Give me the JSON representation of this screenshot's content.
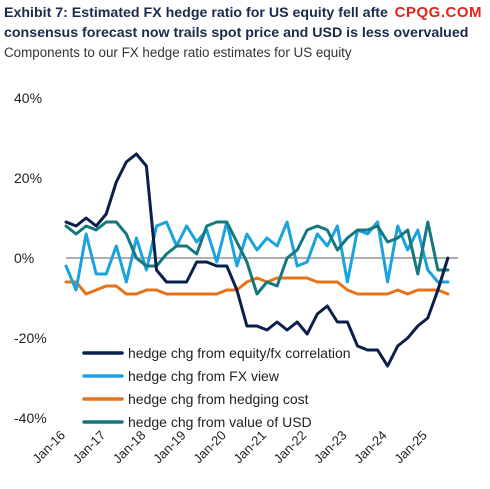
{
  "header": {
    "title_line1": "Exhibit 7: Estimated FX hedge ratio for US equity fell afte",
    "title_line2": "consensus forecast now trails spot price and USD is less overvalued",
    "subtitle": "Components to our FX hedge ratio estimates for US equity",
    "watermark": "CPQG.COM"
  },
  "chart_data": {
    "type": "line",
    "title": "",
    "xlabel": "",
    "ylabel": "",
    "ylim": [
      -40,
      40
    ],
    "yticks": [
      40,
      20,
      0,
      -20,
      -40
    ],
    "ytick_labels": [
      "40%",
      "20%",
      "0%",
      "-20%",
      "-40%"
    ],
    "xlim": [
      2016.0,
      2025.75
    ],
    "xticks": [
      2016,
      2017,
      2018,
      2019,
      2020,
      2021,
      2022,
      2023,
      2024,
      2025
    ],
    "xtick_labels": [
      "Jan-16",
      "Jan-17",
      "Jan-18",
      "Jan-19",
      "Jan-20",
      "Jan-21",
      "Jan-22",
      "Jan-23",
      "Jan-24",
      "Jan-25"
    ],
    "zero_line": true,
    "grid": false,
    "legend_position": "bottom-center",
    "series": [
      {
        "name": "hedge chg from equity/fx correlation",
        "color": "#0b1f4d",
        "x": [
          2016.0,
          2016.25,
          2016.5,
          2016.75,
          2017.0,
          2017.25,
          2017.5,
          2017.75,
          2018.0,
          2018.25,
          2018.5,
          2018.75,
          2019.0,
          2019.25,
          2019.5,
          2019.75,
          2020.0,
          2020.25,
          2020.5,
          2020.75,
          2021.0,
          2021.25,
          2021.5,
          2021.75,
          2022.0,
          2022.25,
          2022.5,
          2022.75,
          2023.0,
          2023.25,
          2023.5,
          2023.75,
          2024.0,
          2024.25,
          2024.5,
          2024.75,
          2025.0,
          2025.25,
          2025.5
        ],
        "y": [
          9,
          8,
          10,
          8,
          11,
          19,
          24,
          26,
          23,
          -3,
          -6,
          -6,
          -6,
          -1,
          -1,
          -2,
          -2,
          -8,
          -17,
          -17,
          -18,
          -16,
          -18,
          -16,
          -19,
          -14,
          -12,
          -16,
          -16,
          -22,
          -23,
          -23,
          -27,
          -22,
          -20,
          -17,
          -15,
          -8,
          0
        ]
      },
      {
        "name": "hedge chg from FX view",
        "color": "#1aa3dd",
        "x": [
          2016.0,
          2016.25,
          2016.5,
          2016.75,
          2017.0,
          2017.25,
          2017.5,
          2017.75,
          2018.0,
          2018.25,
          2018.5,
          2018.75,
          2019.0,
          2019.25,
          2019.5,
          2019.75,
          2020.0,
          2020.25,
          2020.5,
          2020.75,
          2021.0,
          2021.25,
          2021.5,
          2021.75,
          2022.0,
          2022.25,
          2022.5,
          2022.75,
          2023.0,
          2023.25,
          2023.5,
          2023.75,
          2024.0,
          2024.25,
          2024.5,
          2024.75,
          2025.0,
          2025.25,
          2025.5
        ],
        "y": [
          -2,
          -8,
          6,
          -4,
          -4,
          3,
          -6,
          5,
          -3,
          8,
          9,
          3,
          8,
          4,
          7,
          -1,
          9,
          -2,
          6,
          2,
          5,
          3,
          9,
          -2,
          -1,
          6,
          3,
          8,
          -6,
          7,
          6,
          9,
          -6,
          8,
          2,
          7,
          -3,
          -6,
          -6
        ]
      },
      {
        "name": "hedge chg from hedging cost",
        "color": "#e8731a",
        "x": [
          2016.0,
          2016.25,
          2016.5,
          2016.75,
          2017.0,
          2017.25,
          2017.5,
          2017.75,
          2018.0,
          2018.25,
          2018.5,
          2018.75,
          2019.0,
          2019.25,
          2019.5,
          2019.75,
          2020.0,
          2020.25,
          2020.5,
          2020.75,
          2021.0,
          2021.25,
          2021.5,
          2021.75,
          2022.0,
          2022.25,
          2022.5,
          2022.75,
          2023.0,
          2023.25,
          2023.5,
          2023.75,
          2024.0,
          2024.25,
          2024.5,
          2024.75,
          2025.0,
          2025.25,
          2025.5
        ],
        "y": [
          -6,
          -6,
          -9,
          -8,
          -7,
          -7,
          -9,
          -9,
          -8,
          -8,
          -9,
          -9,
          -9,
          -9,
          -9,
          -9,
          -8,
          -8,
          -6,
          -5,
          -6,
          -5,
          -5,
          -5,
          -5,
          -6,
          -6,
          -6,
          -8,
          -9,
          -9,
          -9,
          -9,
          -8,
          -9,
          -8,
          -8,
          -8,
          -9
        ]
      },
      {
        "name": "hedge chg from value of USD",
        "color": "#14787e",
        "x": [
          2016.0,
          2016.25,
          2016.5,
          2016.75,
          2017.0,
          2017.25,
          2017.5,
          2017.75,
          2018.0,
          2018.25,
          2018.5,
          2018.75,
          2019.0,
          2019.25,
          2019.5,
          2019.75,
          2020.0,
          2020.25,
          2020.5,
          2020.75,
          2021.0,
          2021.25,
          2021.5,
          2021.75,
          2022.0,
          2022.25,
          2022.5,
          2022.75,
          2023.0,
          2023.25,
          2023.5,
          2023.75,
          2024.0,
          2024.25,
          2024.5,
          2024.75,
          2025.0,
          2025.25,
          2025.5
        ],
        "y": [
          8,
          6,
          8,
          7,
          9,
          9,
          6,
          0,
          -2,
          -2,
          1,
          3,
          3,
          1,
          8,
          9,
          9,
          4,
          -1,
          -9,
          -6,
          -7,
          0,
          2,
          7,
          8,
          7,
          2,
          5,
          7,
          7,
          8,
          4,
          5,
          7,
          -4,
          9,
          -3,
          -3
        ]
      }
    ]
  }
}
